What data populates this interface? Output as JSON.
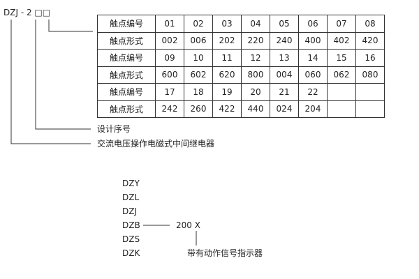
{
  "code_header": "DZJ  - 2 □□",
  "table": {
    "rows": [
      {
        "label": "触点编号",
        "cells": [
          "01",
          "02",
          "03",
          "04",
          "05",
          "06",
          "07",
          "08"
        ]
      },
      {
        "label": "触点形式",
        "cells": [
          "002",
          "006",
          "202",
          "220",
          "240",
          "400",
          "402",
          "420"
        ]
      },
      {
        "label": "触点编号",
        "cells": [
          "09",
          "10",
          "11",
          "12",
          "13",
          "14",
          "15",
          "16"
        ]
      },
      {
        "label": "触点形式",
        "cells": [
          "600",
          "602",
          "620",
          "800",
          "004",
          "060",
          "062",
          "080"
        ]
      },
      {
        "label": "触点编号",
        "cells": [
          "17",
          "18",
          "19",
          "20",
          "21",
          "22",
          "",
          ""
        ]
      },
      {
        "label": "触点形式",
        "cells": [
          "242",
          "260",
          "422",
          "440",
          "024",
          "204",
          "",
          ""
        ]
      }
    ]
  },
  "labels": {
    "design_number": "设计序号",
    "relay_type": "交流电压操作电磁式中间继电器"
  },
  "variants": [
    "DZY",
    "DZL",
    "DZJ",
    "DZB",
    "DZS",
    "DZK"
  ],
  "variant_suffix": "200  X",
  "suffix_note": "带有动作信号指示器"
}
